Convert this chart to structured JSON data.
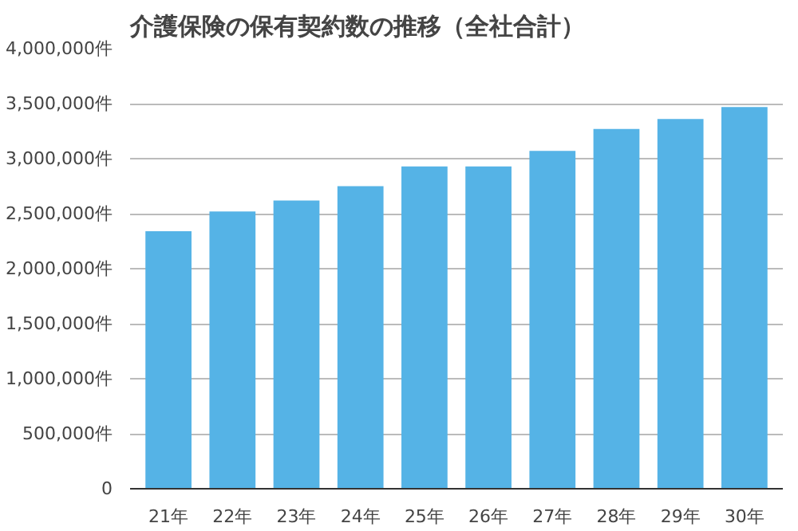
{
  "chart_data": {
    "type": "bar",
    "title": "介護保険の保有契約数の推移（全社合計）",
    "categories": [
      "21年",
      "22年",
      "23年",
      "24年",
      "25年",
      "26年",
      "27年",
      "28年",
      "29年",
      "30年"
    ],
    "values": [
      2340000,
      2520000,
      2620000,
      2750000,
      2930000,
      2930000,
      3070000,
      3270000,
      3360000,
      3470000
    ],
    "color": "#55b3e6",
    "ylim": [
      0,
      4000000
    ],
    "yticks": [
      0,
      {
        "value": 500000,
        "label": "500,000件"
      },
      {
        "value": 1000000,
        "label": "1,000,000件"
      },
      {
        "value": 1500000,
        "label": "1,500,000件"
      },
      {
        "value": 2000000,
        "label": "2,000,000件"
      },
      {
        "value": 2500000,
        "label": "2,500,000件"
      },
      {
        "value": 3000000,
        "label": "3,000,000件"
      },
      {
        "value": 3500000,
        "label": "3,500,000件"
      },
      {
        "value": 4000000,
        "label": "4,000,000件"
      }
    ],
    "grid": "y"
  }
}
